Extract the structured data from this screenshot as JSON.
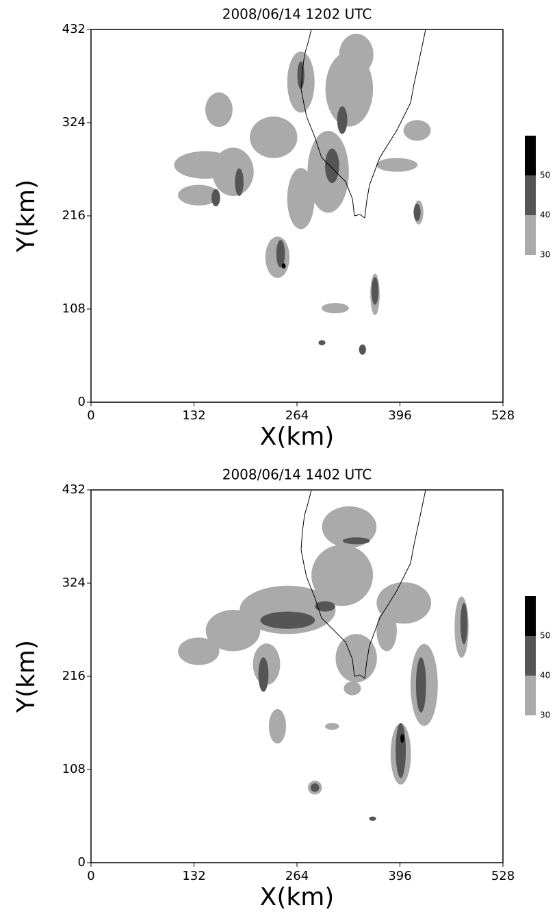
{
  "chart_data": [
    {
      "type": "contour",
      "title": "2008/06/14  1202 UTC",
      "xlabel": "X(km)",
      "ylabel": "Y(km)",
      "xlim": [
        0,
        528
      ],
      "ylim": [
        0,
        432
      ],
      "xticks": [
        0,
        132,
        264,
        396,
        528
      ],
      "yticks": [
        0,
        108,
        216,
        324,
        432
      ],
      "levels": [
        30,
        40,
        50
      ],
      "colors": [
        "#aaaaaa",
        "#555555",
        "#000000"
      ],
      "cells": [
        {
          "x": 146,
          "y": 275,
          "w": 79,
          "h": 32,
          "value": 30
        },
        {
          "x": 182,
          "y": 267,
          "w": 53,
          "h": 56,
          "value": 30
        },
        {
          "x": 138,
          "y": 240,
          "w": 53,
          "h": 24,
          "value": 30
        },
        {
          "x": 234,
          "y": 307,
          "w": 61,
          "h": 48,
          "value": 30
        },
        {
          "x": 269,
          "y": 371,
          "w": 35,
          "h": 71,
          "value": 30
        },
        {
          "x": 331,
          "y": 363,
          "w": 61,
          "h": 87,
          "value": 30
        },
        {
          "x": 340,
          "y": 403,
          "w": 44,
          "h": 48,
          "value": 30
        },
        {
          "x": 304,
          "y": 267,
          "w": 53,
          "h": 95,
          "value": 30
        },
        {
          "x": 269,
          "y": 236,
          "w": 35,
          "h": 71,
          "value": 30
        },
        {
          "x": 239,
          "y": 168,
          "w": 31,
          "h": 48,
          "value": 30
        },
        {
          "x": 392,
          "y": 275,
          "w": 53,
          "h": 16,
          "value": 30
        },
        {
          "x": 418,
          "y": 315,
          "w": 35,
          "h": 24,
          "value": 30
        },
        {
          "x": 420,
          "y": 220,
          "w": 12,
          "h": 28,
          "value": 30
        },
        {
          "x": 364,
          "y": 125,
          "w": 12,
          "h": 48,
          "value": 30
        },
        {
          "x": 313,
          "y": 109,
          "w": 35,
          "h": 12,
          "value": 30
        },
        {
          "x": 164,
          "y": 339,
          "w": 35,
          "h": 40,
          "value": 30
        },
        {
          "x": 190,
          "y": 255,
          "w": 11,
          "h": 32,
          "value": 40
        },
        {
          "x": 160,
          "y": 237,
          "w": 11,
          "h": 20,
          "value": 40
        },
        {
          "x": 309,
          "y": 274,
          "w": 18,
          "h": 40,
          "value": 40
        },
        {
          "x": 322,
          "y": 327,
          "w": 13,
          "h": 32,
          "value": 40
        },
        {
          "x": 269,
          "y": 379,
          "w": 9,
          "h": 32,
          "value": 40
        },
        {
          "x": 243,
          "y": 172,
          "w": 11,
          "h": 32,
          "value": 40
        },
        {
          "x": 364,
          "y": 129,
          "w": 9,
          "h": 32,
          "value": 40
        },
        {
          "x": 418,
          "y": 220,
          "w": 9,
          "h": 20,
          "value": 40
        },
        {
          "x": 348,
          "y": 61,
          "w": 9,
          "h": 12,
          "value": 40
        },
        {
          "x": 296,
          "y": 69,
          "w": 9,
          "h": 6,
          "value": 40
        },
        {
          "x": 247,
          "y": 158,
          "w": 5,
          "h": 6,
          "value": 50
        }
      ]
    },
    {
      "type": "contour",
      "title": "2008/06/14  1402 UTC",
      "xlabel": "X(km)",
      "ylabel": "Y(km)",
      "xlim": [
        0,
        528
      ],
      "ylim": [
        0,
        432
      ],
      "xticks": [
        0,
        132,
        264,
        396,
        528
      ],
      "yticks": [
        0,
        108,
        216,
        324,
        432
      ],
      "levels": [
        30,
        40,
        50
      ],
      "colors": [
        "#aaaaaa",
        "#555555",
        "#000000"
      ],
      "cells": [
        {
          "x": 331,
          "y": 389,
          "w": 70,
          "h": 48,
          "value": 30
        },
        {
          "x": 322,
          "y": 333,
          "w": 79,
          "h": 71,
          "value": 30
        },
        {
          "x": 252,
          "y": 293,
          "w": 123,
          "h": 56,
          "value": 30
        },
        {
          "x": 182,
          "y": 269,
          "w": 70,
          "h": 48,
          "value": 30
        },
        {
          "x": 138,
          "y": 245,
          "w": 53,
          "h": 32,
          "value": 30
        },
        {
          "x": 225,
          "y": 230,
          "w": 35,
          "h": 48,
          "value": 30
        },
        {
          "x": 401,
          "y": 301,
          "w": 70,
          "h": 48,
          "value": 30
        },
        {
          "x": 340,
          "y": 237,
          "w": 53,
          "h": 56,
          "value": 30
        },
        {
          "x": 379,
          "y": 269,
          "w": 26,
          "h": 48,
          "value": 30
        },
        {
          "x": 427,
          "y": 206,
          "w": 35,
          "h": 95,
          "value": 30
        },
        {
          "x": 475,
          "y": 273,
          "w": 18,
          "h": 71,
          "value": 30
        },
        {
          "x": 397,
          "y": 126,
          "w": 26,
          "h": 71,
          "value": 30
        },
        {
          "x": 239,
          "y": 158,
          "w": 22,
          "h": 40,
          "value": 30
        },
        {
          "x": 287,
          "y": 87,
          "w": 18,
          "h": 16,
          "value": 30
        },
        {
          "x": 309,
          "y": 158,
          "w": 18,
          "h": 8,
          "value": 30
        },
        {
          "x": 335,
          "y": 202,
          "w": 22,
          "h": 16,
          "value": 30
        },
        {
          "x": 252,
          "y": 281,
          "w": 70,
          "h": 20,
          "value": 40
        },
        {
          "x": 300,
          "y": 297,
          "w": 26,
          "h": 12,
          "value": 40
        },
        {
          "x": 221,
          "y": 218,
          "w": 13,
          "h": 40,
          "value": 40
        },
        {
          "x": 423,
          "y": 206,
          "w": 13,
          "h": 64,
          "value": 40
        },
        {
          "x": 478,
          "y": 277,
          "w": 9,
          "h": 48,
          "value": 40
        },
        {
          "x": 397,
          "y": 130,
          "w": 13,
          "h": 64,
          "value": 40
        },
        {
          "x": 340,
          "y": 373,
          "w": 35,
          "h": 8,
          "value": 40
        },
        {
          "x": 287,
          "y": 87,
          "w": 11,
          "h": 10,
          "value": 40
        },
        {
          "x": 361,
          "y": 51,
          "w": 9,
          "h": 5,
          "value": 40
        },
        {
          "x": 399,
          "y": 144,
          "w": 5,
          "h": 10,
          "value": 50
        }
      ]
    }
  ]
}
